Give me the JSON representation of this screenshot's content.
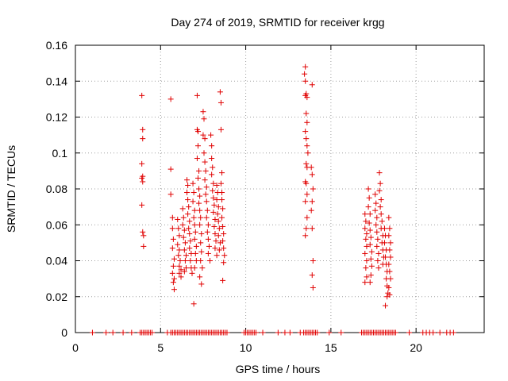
{
  "chart_data": {
    "type": "scatter",
    "title": "Day 274 of 2019, SRMTID for receiver krgg",
    "xlabel": "GPS time / hours",
    "ylabel": "SRMTID / TECUs",
    "xlim": [
      0,
      24
    ],
    "ylim": [
      0,
      0.16
    ],
    "x_ticks": [
      0,
      5,
      10,
      15,
      20
    ],
    "x_tick_labels": [
      "0",
      "5",
      "10",
      "15",
      "20"
    ],
    "y_ticks": [
      0,
      0.02,
      0.04,
      0.06,
      0.08,
      0.1,
      0.12,
      0.14,
      0.16
    ],
    "y_tick_labels": [
      "0",
      "0.02",
      "0.04",
      "0.06",
      "0.08",
      "0.1",
      "0.12",
      "0.14",
      "0.16"
    ],
    "grid": true,
    "marker": "+",
    "marker_color": "#e00000",
    "series": [
      {
        "name": "SRMTID",
        "points": [
          [
            3.9,
            0.132
          ],
          [
            3.95,
            0.113
          ],
          [
            3.95,
            0.108
          ],
          [
            3.9,
            0.094
          ],
          [
            3.95,
            0.087
          ],
          [
            3.9,
            0.086
          ],
          [
            3.95,
            0.084
          ],
          [
            3.9,
            0.071
          ],
          [
            3.95,
            0.056
          ],
          [
            4.0,
            0.054
          ],
          [
            4.0,
            0.048
          ],
          [
            5.6,
            0.13
          ],
          [
            5.6,
            0.091
          ],
          [
            5.6,
            0.077
          ],
          [
            5.7,
            0.064
          ],
          [
            5.7,
            0.058
          ],
          [
            5.75,
            0.052
          ],
          [
            5.7,
            0.047
          ],
          [
            5.8,
            0.041
          ],
          [
            5.75,
            0.037
          ],
          [
            5.7,
            0.033
          ],
          [
            5.8,
            0.03
          ],
          [
            5.75,
            0.028
          ],
          [
            5.8,
            0.024
          ],
          [
            6.0,
            0.063
          ],
          [
            6.05,
            0.058
          ],
          [
            6.1,
            0.054
          ],
          [
            6.0,
            0.049
          ],
          [
            6.1,
            0.046
          ],
          [
            6.05,
            0.043
          ],
          [
            6.15,
            0.04
          ],
          [
            6.1,
            0.037
          ],
          [
            6.2,
            0.035
          ],
          [
            6.1,
            0.033
          ],
          [
            6.2,
            0.031
          ],
          [
            6.3,
            0.069
          ],
          [
            6.35,
            0.064
          ],
          [
            6.3,
            0.06
          ],
          [
            6.4,
            0.057
          ],
          [
            6.35,
            0.053
          ],
          [
            6.45,
            0.05
          ],
          [
            6.4,
            0.046
          ],
          [
            6.5,
            0.043
          ],
          [
            6.45,
            0.04
          ],
          [
            6.5,
            0.036
          ],
          [
            6.4,
            0.034
          ],
          [
            6.55,
            0.085
          ],
          [
            6.6,
            0.082
          ],
          [
            6.55,
            0.078
          ],
          [
            6.6,
            0.074
          ],
          [
            6.65,
            0.07
          ],
          [
            6.6,
            0.066
          ],
          [
            6.7,
            0.062
          ],
          [
            6.65,
            0.058
          ],
          [
            6.7,
            0.055
          ],
          [
            6.75,
            0.051
          ],
          [
            6.7,
            0.047
          ],
          [
            6.8,
            0.044
          ],
          [
            6.75,
            0.04
          ],
          [
            6.8,
            0.036
          ],
          [
            6.85,
            0.033
          ],
          [
            6.9,
            0.083
          ],
          [
            6.95,
            0.078
          ],
          [
            6.9,
            0.073
          ],
          [
            7.0,
            0.068
          ],
          [
            6.95,
            0.064
          ],
          [
            7.0,
            0.06
          ],
          [
            7.05,
            0.056
          ],
          [
            7.0,
            0.052
          ],
          [
            7.1,
            0.048
          ],
          [
            7.05,
            0.044
          ],
          [
            7.1,
            0.04
          ],
          [
            7.0,
            0.036
          ],
          [
            6.95,
            0.016
          ],
          [
            7.15,
            0.132
          ],
          [
            7.15,
            0.113
          ],
          [
            7.2,
            0.112
          ],
          [
            7.2,
            0.104
          ],
          [
            7.15,
            0.097
          ],
          [
            7.25,
            0.09
          ],
          [
            7.2,
            0.086
          ],
          [
            7.25,
            0.08
          ],
          [
            7.3,
            0.076
          ],
          [
            7.25,
            0.072
          ],
          [
            7.3,
            0.068
          ],
          [
            7.35,
            0.064
          ],
          [
            7.3,
            0.06
          ],
          [
            7.4,
            0.055
          ],
          [
            7.35,
            0.05
          ],
          [
            7.4,
            0.045
          ],
          [
            7.35,
            0.04
          ],
          [
            7.45,
            0.036
          ],
          [
            7.3,
            0.031
          ],
          [
            7.4,
            0.027
          ],
          [
            7.5,
            0.123
          ],
          [
            7.55,
            0.119
          ],
          [
            7.5,
            0.11
          ],
          [
            7.6,
            0.108
          ],
          [
            7.55,
            0.1
          ],
          [
            7.6,
            0.095
          ],
          [
            7.65,
            0.09
          ],
          [
            7.6,
            0.085
          ],
          [
            7.7,
            0.081
          ],
          [
            7.65,
            0.077
          ],
          [
            7.7,
            0.073
          ],
          [
            7.75,
            0.068
          ],
          [
            7.7,
            0.064
          ],
          [
            7.8,
            0.06
          ],
          [
            7.75,
            0.056
          ],
          [
            7.8,
            0.052
          ],
          [
            7.85,
            0.048
          ],
          [
            7.8,
            0.044
          ],
          [
            7.9,
            0.04
          ],
          [
            7.95,
            0.11
          ],
          [
            8.0,
            0.104
          ],
          [
            8.0,
            0.097
          ],
          [
            8.05,
            0.092
          ],
          [
            8.0,
            0.088
          ],
          [
            8.1,
            0.083
          ],
          [
            8.05,
            0.079
          ],
          [
            8.1,
            0.075
          ],
          [
            8.15,
            0.071
          ],
          [
            8.1,
            0.067
          ],
          [
            8.2,
            0.063
          ],
          [
            8.15,
            0.059
          ],
          [
            8.2,
            0.055
          ],
          [
            8.25,
            0.051
          ],
          [
            8.2,
            0.047
          ],
          [
            8.3,
            0.043
          ],
          [
            8.3,
            0.082
          ],
          [
            8.35,
            0.078
          ],
          [
            8.3,
            0.074
          ],
          [
            8.4,
            0.07
          ],
          [
            8.35,
            0.066
          ],
          [
            8.4,
            0.062
          ],
          [
            8.45,
            0.058
          ],
          [
            8.4,
            0.054
          ],
          [
            8.5,
            0.05
          ],
          [
            8.45,
            0.046
          ],
          [
            8.5,
            0.134
          ],
          [
            8.55,
            0.128
          ],
          [
            8.55,
            0.113
          ],
          [
            8.6,
            0.089
          ],
          [
            8.55,
            0.083
          ],
          [
            8.6,
            0.078
          ],
          [
            8.6,
            0.074
          ],
          [
            8.65,
            0.069
          ],
          [
            8.6,
            0.064
          ],
          [
            8.65,
            0.059
          ],
          [
            8.7,
            0.055
          ],
          [
            8.65,
            0.051
          ],
          [
            8.7,
            0.047
          ],
          [
            8.75,
            0.043
          ],
          [
            8.7,
            0.039
          ],
          [
            8.65,
            0.029
          ],
          [
            13.5,
            0.148
          ],
          [
            13.45,
            0.144
          ],
          [
            13.5,
            0.14
          ],
          [
            13.55,
            0.133
          ],
          [
            13.5,
            0.132
          ],
          [
            13.6,
            0.131
          ],
          [
            13.55,
            0.122
          ],
          [
            13.6,
            0.117
          ],
          [
            13.5,
            0.112
          ],
          [
            13.55,
            0.108
          ],
          [
            13.6,
            0.104
          ],
          [
            13.65,
            0.1
          ],
          [
            13.55,
            0.094
          ],
          [
            13.6,
            0.092
          ],
          [
            13.5,
            0.084
          ],
          [
            13.55,
            0.083
          ],
          [
            13.6,
            0.077
          ],
          [
            13.5,
            0.073
          ],
          [
            13.6,
            0.064
          ],
          [
            13.55,
            0.058
          ],
          [
            13.5,
            0.054
          ],
          [
            13.9,
            0.138
          ],
          [
            13.85,
            0.092
          ],
          [
            13.9,
            0.088
          ],
          [
            13.95,
            0.08
          ],
          [
            13.9,
            0.073
          ],
          [
            13.85,
            0.068
          ],
          [
            13.9,
            0.058
          ],
          [
            13.95,
            0.04
          ],
          [
            13.9,
            0.032
          ],
          [
            13.95,
            0.025
          ],
          [
            17.0,
            0.066
          ],
          [
            17.05,
            0.062
          ],
          [
            17.0,
            0.058
          ],
          [
            17.1,
            0.055
          ],
          [
            17.05,
            0.052
          ],
          [
            17.1,
            0.048
          ],
          [
            17.0,
            0.044
          ],
          [
            17.1,
            0.04
          ],
          [
            17.05,
            0.036
          ],
          [
            17.1,
            0.031
          ],
          [
            17.0,
            0.028
          ],
          [
            17.2,
            0.08
          ],
          [
            17.25,
            0.075
          ],
          [
            17.2,
            0.07
          ],
          [
            17.3,
            0.066
          ],
          [
            17.25,
            0.061
          ],
          [
            17.3,
            0.057
          ],
          [
            17.35,
            0.053
          ],
          [
            17.3,
            0.049
          ],
          [
            17.4,
            0.045
          ],
          [
            17.35,
            0.041
          ],
          [
            17.4,
            0.037
          ],
          [
            17.35,
            0.032
          ],
          [
            17.3,
            0.028
          ],
          [
            17.6,
            0.077
          ],
          [
            17.65,
            0.072
          ],
          [
            17.6,
            0.068
          ],
          [
            17.7,
            0.064
          ],
          [
            17.65,
            0.06
          ],
          [
            17.7,
            0.056
          ],
          [
            17.75,
            0.052
          ],
          [
            17.7,
            0.048
          ],
          [
            17.8,
            0.044
          ],
          [
            17.75,
            0.04
          ],
          [
            17.8,
            0.036
          ],
          [
            17.85,
            0.089
          ],
          [
            17.9,
            0.083
          ],
          [
            17.85,
            0.079
          ],
          [
            17.95,
            0.074
          ],
          [
            17.9,
            0.07
          ],
          [
            17.95,
            0.066
          ],
          [
            18.0,
            0.062
          ],
          [
            17.95,
            0.058
          ],
          [
            18.05,
            0.054
          ],
          [
            18.0,
            0.05
          ],
          [
            18.05,
            0.046
          ],
          [
            18.1,
            0.042
          ],
          [
            18.05,
            0.038
          ],
          [
            18.15,
            0.058
          ],
          [
            18.2,
            0.054
          ],
          [
            18.15,
            0.05
          ],
          [
            18.25,
            0.046
          ],
          [
            18.2,
            0.042
          ],
          [
            18.25,
            0.038
          ],
          [
            18.3,
            0.034
          ],
          [
            18.25,
            0.03
          ],
          [
            18.3,
            0.026
          ],
          [
            18.35,
            0.022
          ],
          [
            18.3,
            0.02
          ],
          [
            18.2,
            0.015
          ],
          [
            18.4,
            0.064
          ],
          [
            18.45,
            0.058
          ],
          [
            18.4,
            0.054
          ],
          [
            18.5,
            0.05
          ],
          [
            18.45,
            0.046
          ],
          [
            18.5,
            0.042
          ],
          [
            18.4,
            0.038
          ],
          [
            18.45,
            0.034
          ],
          [
            18.5,
            0.03
          ],
          [
            18.4,
            0.025
          ],
          [
            18.45,
            0.021
          ]
        ],
        "zero_x": [
          1.0,
          1.8,
          2.2,
          2.8,
          3.3,
          3.8,
          3.9,
          4.0,
          4.1,
          4.2,
          4.3,
          4.4,
          4.5,
          5.4,
          5.6,
          5.7,
          5.8,
          5.9,
          6.0,
          6.1,
          6.2,
          6.3,
          6.4,
          6.5,
          6.6,
          6.7,
          6.8,
          6.9,
          7.0,
          7.1,
          7.2,
          7.3,
          7.4,
          7.5,
          7.6,
          7.7,
          7.8,
          7.9,
          8.0,
          8.1,
          8.2,
          8.3,
          8.4,
          8.5,
          8.6,
          8.7,
          8.8,
          8.9,
          9.9,
          10.0,
          10.1,
          10.2,
          10.3,
          10.4,
          10.5,
          10.6,
          11.0,
          11.9,
          12.3,
          12.6,
          13.2,
          13.4,
          13.5,
          13.6,
          13.7,
          13.8,
          13.9,
          14.0,
          14.1,
          14.2,
          14.9,
          15.6,
          16.8,
          16.9,
          17.0,
          17.1,
          17.2,
          17.3,
          17.4,
          17.5,
          17.6,
          17.7,
          17.8,
          17.9,
          18.0,
          18.1,
          18.2,
          18.3,
          18.4,
          18.5,
          18.6,
          18.7,
          18.8,
          19.6,
          20.4,
          20.6,
          20.8,
          21.0,
          21.4,
          21.8,
          22.0,
          22.2
        ]
      }
    ]
  }
}
